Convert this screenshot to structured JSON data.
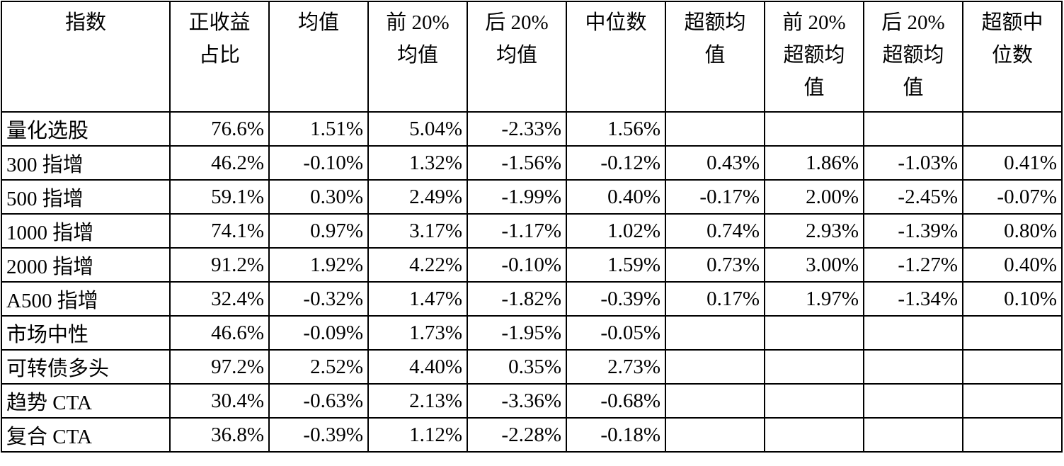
{
  "table": {
    "header": [
      [
        "指数"
      ],
      [
        "正收益",
        "占比"
      ],
      [
        "均值"
      ],
      [
        "前 20%",
        "均值"
      ],
      [
        "后 20%",
        "均值"
      ],
      [
        "中位数"
      ],
      [
        "超额均",
        "值"
      ],
      [
        "前 20%",
        "超额均",
        "值"
      ],
      [
        "后 20%",
        "超额均",
        "值"
      ],
      [
        "超额中",
        "位数"
      ]
    ],
    "rows": [
      [
        "量化选股",
        "76.6%",
        "1.51%",
        "5.04%",
        "-2.33%",
        "1.56%",
        null,
        null,
        null,
        null
      ],
      [
        "300 指增",
        "46.2%",
        "-0.10%",
        "1.32%",
        "-1.56%",
        "-0.12%",
        "0.43%",
        "1.86%",
        "-1.03%",
        "0.41%"
      ],
      [
        "500 指增",
        "59.1%",
        "0.30%",
        "2.49%",
        "-1.99%",
        "0.40%",
        "-0.17%",
        "2.00%",
        "-2.45%",
        "-0.07%"
      ],
      [
        "1000 指增",
        "74.1%",
        "0.97%",
        "3.17%",
        "-1.17%",
        "1.02%",
        "0.74%",
        "2.93%",
        "-1.39%",
        "0.80%"
      ],
      [
        "2000 指增",
        "91.2%",
        "1.92%",
        "4.22%",
        "-0.10%",
        "1.59%",
        "0.73%",
        "3.00%",
        "-1.27%",
        "0.40%"
      ],
      [
        "A500 指增",
        "32.4%",
        "-0.32%",
        "1.47%",
        "-1.82%",
        "-0.39%",
        "0.17%",
        "1.97%",
        "-1.34%",
        "0.10%"
      ],
      [
        "市场中性",
        "46.6%",
        "-0.09%",
        "1.73%",
        "-1.95%",
        "-0.05%",
        null,
        null,
        null,
        null
      ],
      [
        "可转债多头",
        "97.2%",
        "2.52%",
        "4.40%",
        "0.35%",
        "2.73%",
        null,
        null,
        null,
        null
      ],
      [
        "趋势 CTA",
        "30.4%",
        "-0.63%",
        "2.13%",
        "-3.36%",
        "-0.68%",
        null,
        null,
        null,
        null
      ],
      [
        "复合 CTA",
        "36.8%",
        "-0.39%",
        "1.12%",
        "-2.28%",
        "-0.18%",
        null,
        null,
        null,
        null
      ]
    ]
  }
}
